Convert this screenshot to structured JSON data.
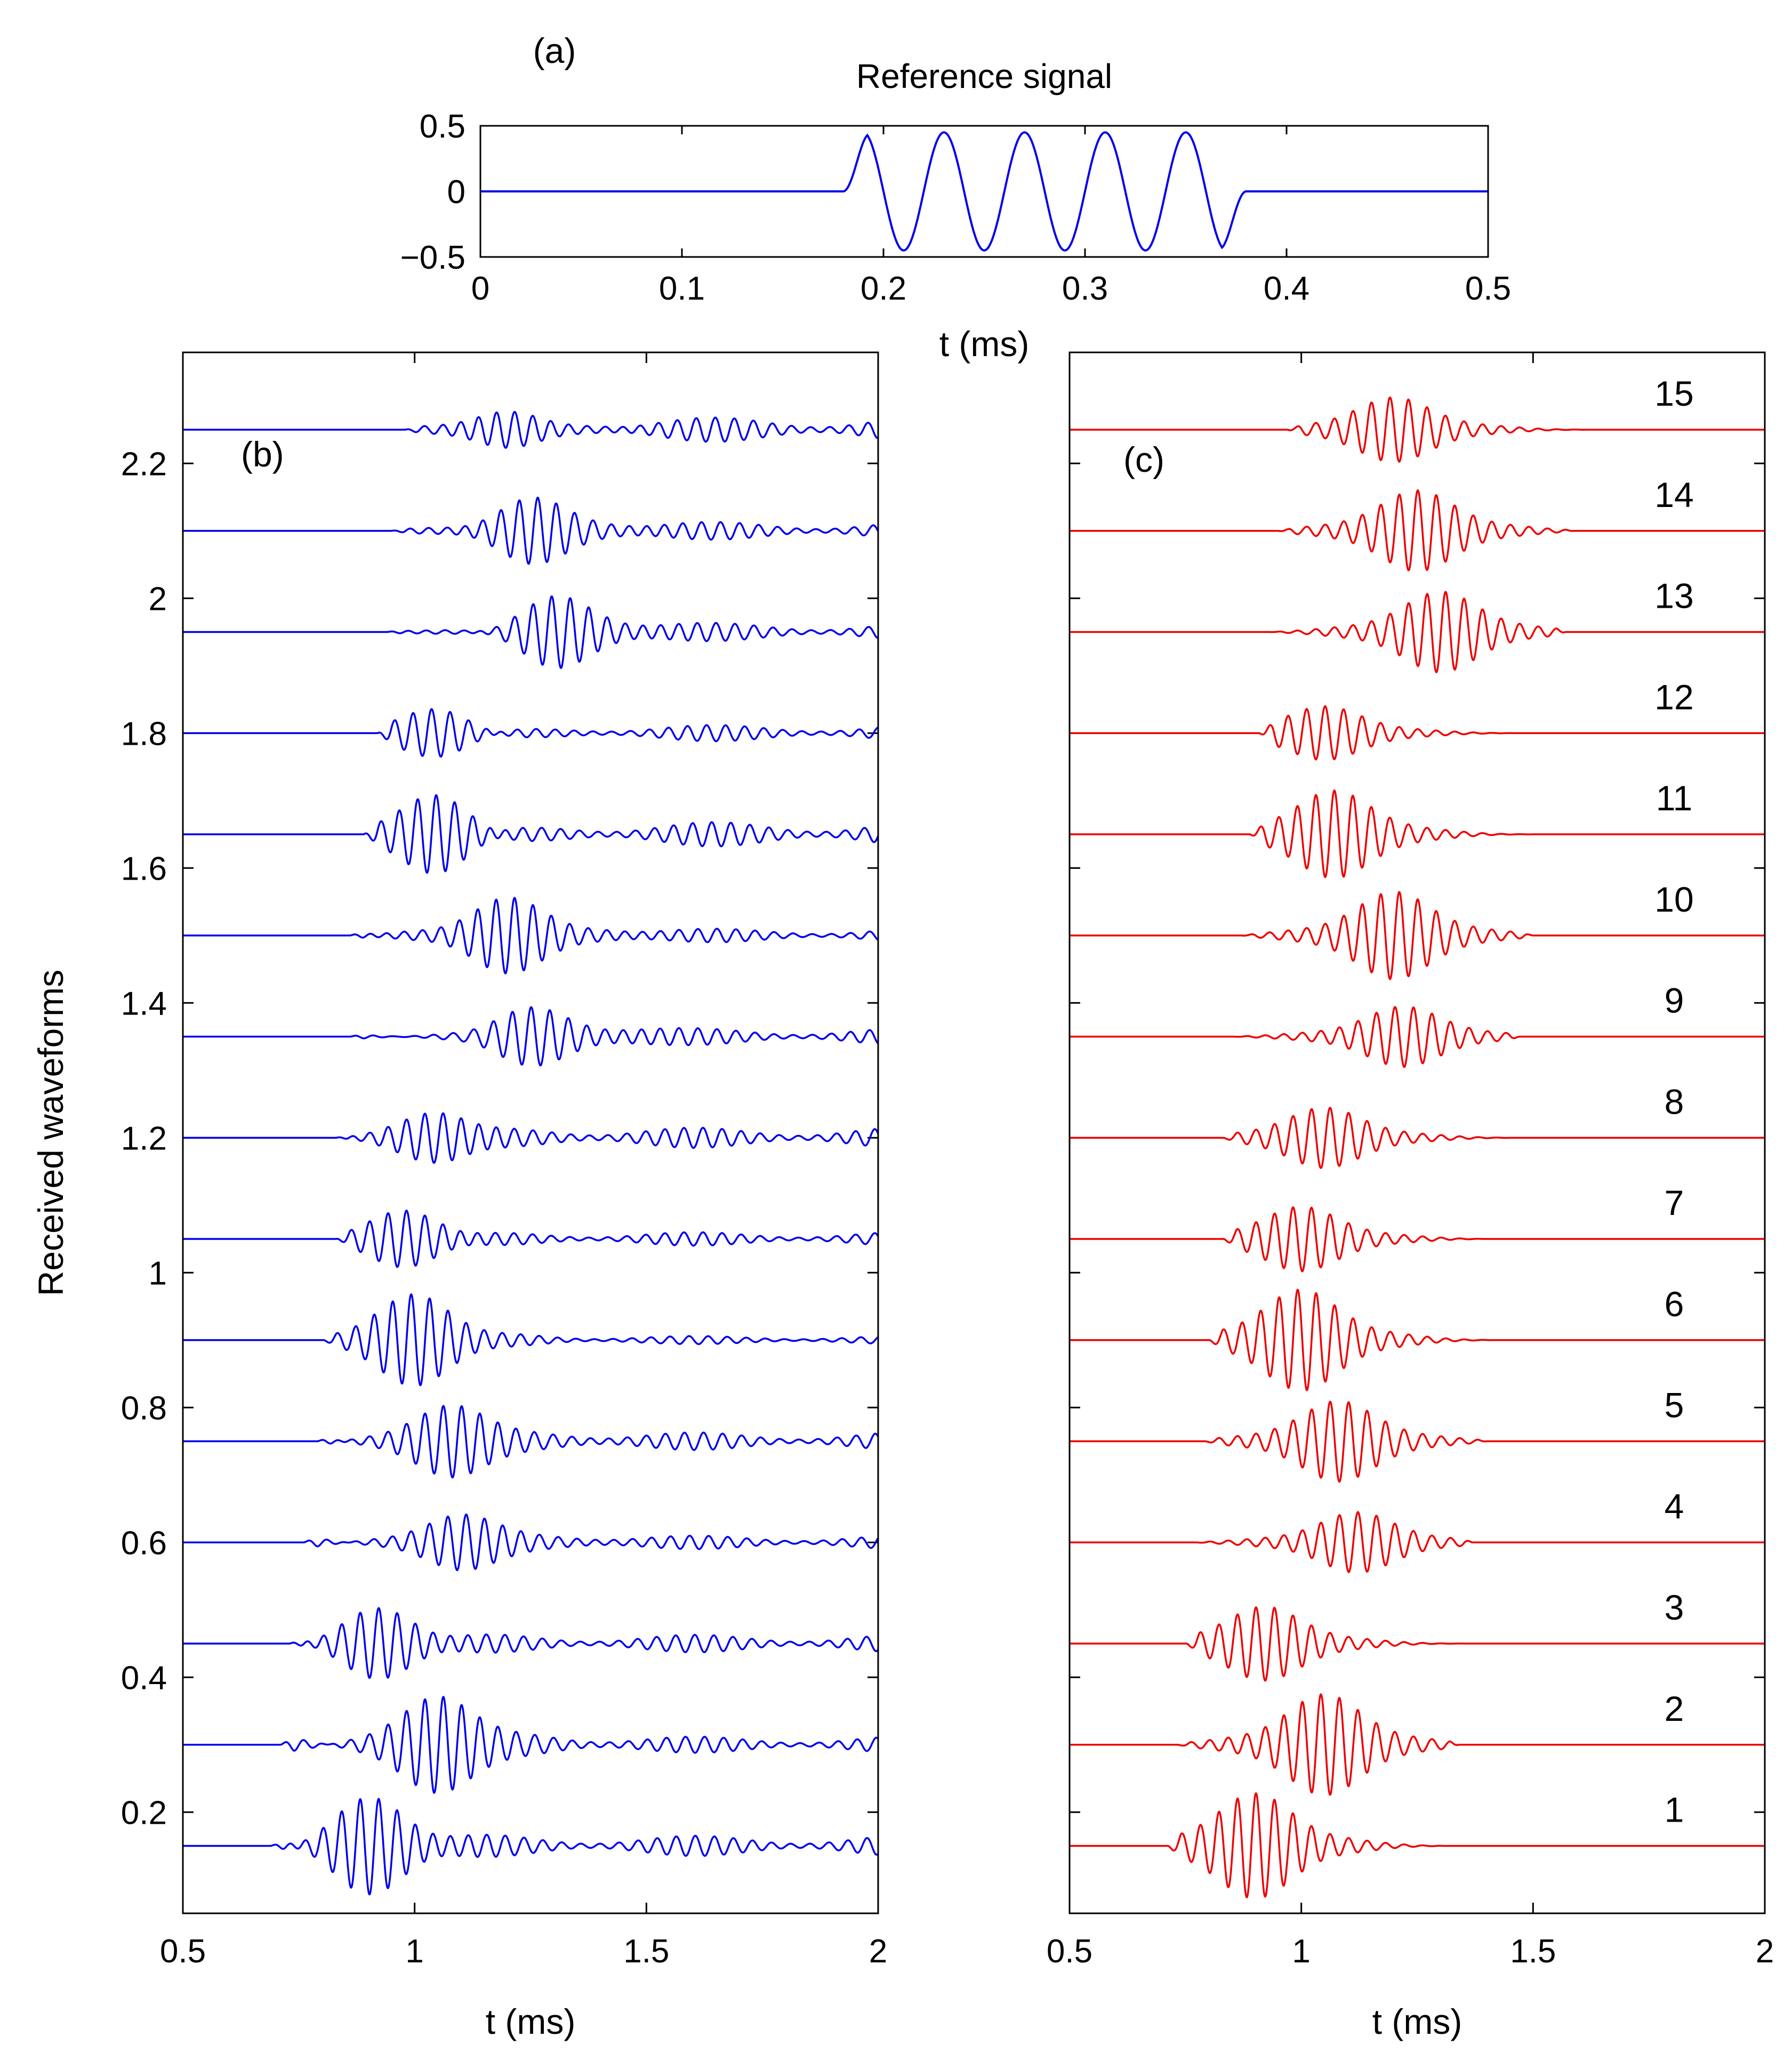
{
  "chart_data": [
    {
      "id": "a",
      "type": "line",
      "panel_label": "(a)",
      "title": "Reference signal",
      "xlabel": "t (ms)",
      "ylabel": "",
      "xlim": [
        0,
        0.5
      ],
      "ylim": [
        -0.5,
        0.5
      ],
      "xticks": [
        0,
        0.1,
        0.2,
        0.3,
        0.4,
        0.5
      ],
      "xtick_labels": [
        "0",
        "0.1",
        "0.2",
        "0.3",
        "0.4",
        "0.5"
      ],
      "yticks": [
        -0.5,
        0,
        0.5
      ],
      "ytick_labels": [
        "−0.5",
        "0",
        "0.5"
      ],
      "color": "#0000ee",
      "signal": {
        "start": 0.175,
        "end": 0.385,
        "frequency_khz": 25,
        "amplitude": 0.45,
        "cycles": 5
      }
    },
    {
      "id": "b",
      "type": "line",
      "panel_label": "(b)",
      "xlabel": "t (ms)",
      "ylabel": "Received waveforms",
      "xlim": [
        0.5,
        2
      ],
      "ylim": [
        0.05,
        2.35
      ],
      "xticks": [
        0.5,
        1,
        1.5,
        2
      ],
      "xtick_labels": [
        "0.5",
        "1",
        "1.5",
        "2"
      ],
      "yticks": [
        0.2,
        0.4,
        0.6,
        0.8,
        1,
        1.2,
        1.4,
        1.6,
        1.8,
        2,
        2.2
      ],
      "ytick_labels": [
        "0.2",
        "0.4",
        "0.6",
        "0.8",
        "1",
        "1.2",
        "1.4",
        "1.6",
        "1.8",
        "2",
        "2.2"
      ],
      "color": "#0000ee",
      "series": [
        {
          "name": "1",
          "offset": 0.15,
          "onset": 0.69,
          "peak": 0.9,
          "amplitude": 0.075,
          "tail": 0.015
        },
        {
          "name": "2",
          "offset": 0.3,
          "onset": 0.71,
          "peak": 1.05,
          "amplitude": 0.075,
          "tail": 0.012
        },
        {
          "name": "3",
          "offset": 0.45,
          "onset": 0.73,
          "peak": 0.92,
          "amplitude": 0.055,
          "tail": 0.013
        },
        {
          "name": "4",
          "offset": 0.6,
          "onset": 0.76,
          "peak": 1.1,
          "amplitude": 0.045,
          "tail": 0.01
        },
        {
          "name": "5",
          "offset": 0.75,
          "onset": 0.79,
          "peak": 1.08,
          "amplitude": 0.06,
          "tail": 0.013
        },
        {
          "name": "6",
          "offset": 0.9,
          "onset": 0.8,
          "peak": 1.0,
          "amplitude": 0.07,
          "tail": 0.006
        },
        {
          "name": "7",
          "offset": 1.05,
          "onset": 0.83,
          "peak": 0.98,
          "amplitude": 0.045,
          "tail": 0.01
        },
        {
          "name": "8",
          "offset": 1.2,
          "onset": 0.83,
          "peak": 1.05,
          "amplitude": 0.045,
          "tail": 0.015
        },
        {
          "name": "9",
          "offset": 1.35,
          "onset": 0.86,
          "peak": 1.25,
          "amplitude": 0.045,
          "tail": 0.012
        },
        {
          "name": "10",
          "offset": 1.5,
          "onset": 0.86,
          "peak": 1.2,
          "amplitude": 0.065,
          "tail": 0.01
        },
        {
          "name": "11",
          "offset": 1.65,
          "onset": 0.89,
          "peak": 1.05,
          "amplitude": 0.065,
          "tail": 0.018
        },
        {
          "name": "12",
          "offset": 1.8,
          "onset": 0.92,
          "peak": 1.05,
          "amplitude": 0.04,
          "tail": 0.012
        },
        {
          "name": "13",
          "offset": 1.95,
          "onset": 0.94,
          "peak": 1.3,
          "amplitude": 0.06,
          "tail": 0.013
        },
        {
          "name": "14",
          "offset": 2.1,
          "onset": 0.95,
          "peak": 1.25,
          "amplitude": 0.06,
          "tail": 0.013
        },
        {
          "name": "15",
          "offset": 2.25,
          "onset": 0.98,
          "peak": 1.2,
          "amplitude": 0.045,
          "tail": 0.018
        }
      ]
    },
    {
      "id": "c",
      "type": "line",
      "panel_label": "(c)",
      "xlabel": "t (ms)",
      "ylabel": "",
      "xlim": [
        0.5,
        2
      ],
      "xticks": [
        0.5,
        1,
        1.5,
        2
      ],
      "xtick_labels": [
        "0.5",
        "1",
        "1.5",
        "2"
      ],
      "color": "#ee0000",
      "series": [
        {
          "name": "1",
          "offset": 0.15,
          "onset": 0.71,
          "end": 1.31,
          "peak": 0.9,
          "amplitude": 0.078
        },
        {
          "name": "2",
          "offset": 0.3,
          "onset": 0.73,
          "end": 1.34,
          "peak": 1.05,
          "amplitude": 0.075
        },
        {
          "name": "3",
          "offset": 0.45,
          "onset": 0.75,
          "end": 1.37,
          "peak": 0.92,
          "amplitude": 0.055
        },
        {
          "name": "4",
          "offset": 0.6,
          "onset": 0.77,
          "end": 1.37,
          "peak": 1.12,
          "amplitude": 0.045
        },
        {
          "name": "5",
          "offset": 0.75,
          "onset": 0.79,
          "end": 1.4,
          "peak": 1.08,
          "amplitude": 0.06
        },
        {
          "name": "6",
          "offset": 0.9,
          "onset": 0.8,
          "end": 1.42,
          "peak": 1.0,
          "amplitude": 0.075
        },
        {
          "name": "7",
          "offset": 1.05,
          "onset": 0.83,
          "end": 1.4,
          "peak": 1.0,
          "amplitude": 0.048
        },
        {
          "name": "8",
          "offset": 1.2,
          "onset": 0.83,
          "end": 1.46,
          "peak": 1.05,
          "amplitude": 0.045
        },
        {
          "name": "9",
          "offset": 1.35,
          "onset": 0.85,
          "end": 1.47,
          "peak": 1.22,
          "amplitude": 0.045
        },
        {
          "name": "10",
          "offset": 1.5,
          "onset": 0.87,
          "end": 1.5,
          "peak": 1.2,
          "amplitude": 0.065
        },
        {
          "name": "11",
          "offset": 1.65,
          "onset": 0.89,
          "end": 1.52,
          "peak": 1.07,
          "amplitude": 0.065
        },
        {
          "name": "12",
          "offset": 1.8,
          "onset": 0.91,
          "end": 1.52,
          "peak": 1.05,
          "amplitude": 0.04
        },
        {
          "name": "13",
          "offset": 1.95,
          "onset": 0.93,
          "end": 1.57,
          "peak": 1.3,
          "amplitude": 0.06
        },
        {
          "name": "14",
          "offset": 2.1,
          "onset": 0.95,
          "end": 1.59,
          "peak": 1.25,
          "amplitude": 0.06
        },
        {
          "name": "15",
          "offset": 2.25,
          "onset": 0.97,
          "end": 1.62,
          "peak": 1.2,
          "amplitude": 0.048
        }
      ]
    }
  ]
}
